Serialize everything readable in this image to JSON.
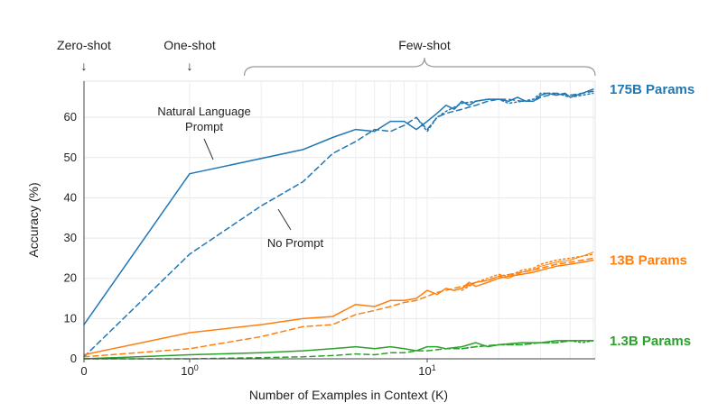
{
  "chart_data": {
    "type": "line",
    "xlabel": "Number of Examples in Context  (K)",
    "ylabel": "Accuracy (%)",
    "ylim": [
      0,
      69
    ],
    "yticks": [
      0,
      10,
      20,
      30,
      40,
      50,
      60
    ],
    "xticks": [
      {
        "value": 0,
        "label": "0"
      },
      {
        "value": 1,
        "label": "10",
        "sup": "0"
      },
      {
        "value": 10,
        "label": "10",
        "sup": "1"
      }
    ],
    "x_scale": "log (with 0 at origin)",
    "grid": true,
    "regions": [
      {
        "label": "Zero-shot",
        "arrow": "↓",
        "x": 0
      },
      {
        "label": "One-shot",
        "arrow": "↓",
        "x": 1
      },
      {
        "label": "Few-shot",
        "x_range": [
          1.7,
          50
        ]
      }
    ],
    "annotations": [
      {
        "text": "Natural Language",
        "text2": "Prompt"
      },
      {
        "text": "No Prompt"
      }
    ],
    "colors": {
      "175B": "#1f77b4",
      "13B": "#ff7f0e",
      "1.3B": "#2ca02c"
    },
    "series": [
      {
        "name": "175B Params",
        "group": "175B",
        "style": "solid",
        "points": [
          [
            0,
            8.5
          ],
          [
            1,
            46
          ],
          [
            3,
            52
          ],
          [
            4,
            55
          ],
          [
            5,
            57
          ],
          [
            6,
            56.5
          ],
          [
            7,
            59
          ],
          [
            8,
            59
          ],
          [
            9,
            57
          ],
          [
            10,
            59
          ],
          [
            11,
            61
          ],
          [
            12,
            63
          ],
          [
            13,
            62
          ],
          [
            14,
            64
          ],
          [
            15,
            63
          ],
          [
            16,
            64
          ],
          [
            18,
            64.5
          ],
          [
            20,
            64.5
          ],
          [
            22,
            64
          ],
          [
            24,
            65
          ],
          [
            26,
            64
          ],
          [
            28,
            64
          ],
          [
            30,
            65.5
          ],
          [
            32,
            66
          ],
          [
            35,
            65.5
          ],
          [
            38,
            66
          ],
          [
            40,
            65
          ],
          [
            45,
            66
          ],
          [
            50,
            67
          ]
        ]
      },
      {
        "name": "",
        "group": "175B",
        "style": "dashed",
        "points": [
          [
            0,
            0.5
          ],
          [
            1,
            26
          ],
          [
            2,
            38
          ],
          [
            3,
            44
          ],
          [
            4,
            51
          ],
          [
            5,
            54
          ],
          [
            6,
            57
          ],
          [
            7,
            56.5
          ],
          [
            8,
            58
          ],
          [
            9,
            60
          ],
          [
            10,
            57
          ],
          [
            11,
            60
          ],
          [
            12,
            61
          ],
          [
            14,
            62
          ],
          [
            16,
            63
          ],
          [
            18,
            64
          ],
          [
            20,
            64.5
          ],
          [
            22,
            64.5
          ],
          [
            25,
            64
          ],
          [
            28,
            64
          ],
          [
            30,
            65
          ],
          [
            35,
            66
          ],
          [
            40,
            65.5
          ],
          [
            45,
            66
          ],
          [
            50,
            66.5
          ]
        ]
      },
      {
        "name": "",
        "group": "175B",
        "style": "dotted",
        "points": [
          [
            9,
            60
          ],
          [
            10,
            56.5
          ],
          [
            11,
            60
          ],
          [
            12,
            61.5
          ],
          [
            14,
            63.5
          ],
          [
            16,
            64
          ],
          [
            18,
            64.5
          ],
          [
            20,
            64.5
          ],
          [
            22,
            63.5
          ],
          [
            25,
            64
          ],
          [
            28,
            64.5
          ],
          [
            30,
            66
          ],
          [
            35,
            66
          ],
          [
            40,
            65
          ],
          [
            45,
            65.5
          ],
          [
            50,
            66
          ]
        ]
      },
      {
        "name": "13B Params",
        "group": "13B",
        "style": "solid",
        "points": [
          [
            0,
            1
          ],
          [
            1,
            6.5
          ],
          [
            2,
            8.5
          ],
          [
            3,
            10
          ],
          [
            4,
            10.5
          ],
          [
            5,
            13.5
          ],
          [
            6,
            13
          ],
          [
            7,
            14.5
          ],
          [
            8,
            14.5
          ],
          [
            9,
            15
          ],
          [
            10,
            17
          ],
          [
            11,
            16
          ],
          [
            12,
            17.5
          ],
          [
            13,
            17
          ],
          [
            14,
            17.5
          ],
          [
            15,
            19
          ],
          [
            16,
            18
          ],
          [
            18,
            19
          ],
          [
            20,
            20
          ],
          [
            22,
            20.5
          ],
          [
            25,
            21
          ],
          [
            28,
            21.5
          ],
          [
            30,
            22
          ],
          [
            35,
            23
          ],
          [
            40,
            23.5
          ],
          [
            45,
            24
          ],
          [
            50,
            24.5
          ]
        ]
      },
      {
        "name": "",
        "group": "13B",
        "style": "dashed",
        "points": [
          [
            0,
            0.5
          ],
          [
            1,
            2.5
          ],
          [
            2,
            5.5
          ],
          [
            3,
            8
          ],
          [
            4,
            8.5
          ],
          [
            5,
            11
          ],
          [
            6,
            12
          ],
          [
            7,
            13
          ],
          [
            8,
            14
          ],
          [
            9,
            14.5
          ],
          [
            10,
            15.5
          ],
          [
            11,
            16.5
          ],
          [
            12,
            17
          ],
          [
            14,
            18
          ],
          [
            16,
            19
          ],
          [
            18,
            19.5
          ],
          [
            20,
            20.5
          ],
          [
            25,
            21.5
          ],
          [
            30,
            22.5
          ],
          [
            35,
            23.5
          ],
          [
            40,
            24
          ],
          [
            45,
            24.5
          ],
          [
            50,
            25
          ]
        ]
      },
      {
        "name": "",
        "group": "13B",
        "style": "dotted",
        "points": [
          [
            14,
            17
          ],
          [
            16,
            19
          ],
          [
            18,
            20
          ],
          [
            20,
            21
          ],
          [
            22,
            20.5
          ],
          [
            25,
            22
          ],
          [
            28,
            22.5
          ],
          [
            30,
            23.5
          ],
          [
            35,
            24.5
          ],
          [
            40,
            25
          ],
          [
            45,
            25.5
          ],
          [
            50,
            26
          ]
        ]
      },
      {
        "name": "",
        "group": "13B",
        "style": "thin",
        "points": [
          [
            14,
            17.5
          ],
          [
            16,
            19
          ],
          [
            18,
            19.5
          ],
          [
            20,
            20.5
          ],
          [
            22,
            20
          ],
          [
            25,
            21.5
          ],
          [
            28,
            22
          ],
          [
            30,
            23
          ],
          [
            35,
            24
          ],
          [
            40,
            24.5
          ],
          [
            45,
            25.5
          ],
          [
            50,
            26.5
          ]
        ]
      },
      {
        "name": "1.3B Params",
        "group": "1.3B",
        "style": "solid",
        "points": [
          [
            0,
            0
          ],
          [
            1,
            1
          ],
          [
            2,
            1.5
          ],
          [
            3,
            2
          ],
          [
            4,
            2.5
          ],
          [
            5,
            3
          ],
          [
            6,
            2.5
          ],
          [
            7,
            3
          ],
          [
            8,
            2.5
          ],
          [
            9,
            2
          ],
          [
            10,
            3
          ],
          [
            11,
            3
          ],
          [
            12,
            2.5
          ],
          [
            14,
            3
          ],
          [
            16,
            4
          ],
          [
            18,
            3
          ],
          [
            20,
            3.5
          ],
          [
            25,
            4
          ],
          [
            30,
            4
          ],
          [
            35,
            4.5
          ],
          [
            40,
            4.5
          ],
          [
            45,
            4.5
          ],
          [
            50,
            4.5
          ]
        ]
      },
      {
        "name": "",
        "group": "1.3B",
        "style": "dashed",
        "points": [
          [
            0,
            0
          ],
          [
            1,
            0
          ],
          [
            2,
            0.3
          ],
          [
            3,
            0.5
          ],
          [
            4,
            0.8
          ],
          [
            5,
            1.2
          ],
          [
            6,
            1
          ],
          [
            7,
            1.5
          ],
          [
            8,
            1.5
          ],
          [
            9,
            2
          ],
          [
            10,
            2
          ],
          [
            12,
            2.5
          ],
          [
            14,
            2.5
          ],
          [
            16,
            3
          ],
          [
            20,
            3.5
          ],
          [
            25,
            3.5
          ],
          [
            30,
            4
          ],
          [
            35,
            4
          ],
          [
            40,
            4.5
          ],
          [
            45,
            4.5
          ],
          [
            50,
            4.5
          ]
        ]
      },
      {
        "name": "",
        "group": "1.3B",
        "style": "dotted",
        "points": [
          [
            14,
            2.5
          ],
          [
            16,
            3
          ],
          [
            20,
            3.5
          ],
          [
            25,
            3.5
          ],
          [
            30,
            4
          ],
          [
            35,
            4
          ],
          [
            40,
            4.5
          ],
          [
            45,
            4
          ],
          [
            50,
            4.5
          ]
        ]
      }
    ]
  }
}
